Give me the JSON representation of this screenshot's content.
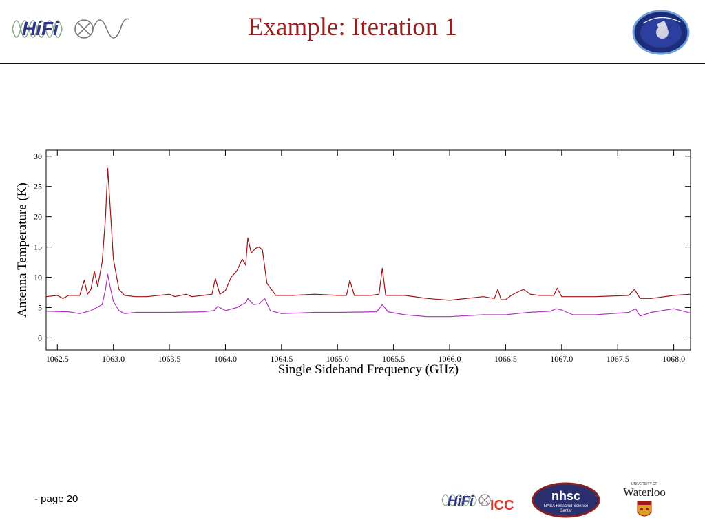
{
  "slide": {
    "title": "Example: Iteration 1",
    "page_label": "- page 20",
    "logos": {
      "top_left": "HiFi",
      "top_right_icon": "herschel-mission-icon",
      "bottom_hifi": "HiFi",
      "bottom_icc": "ICC",
      "nhsc": "nhsc",
      "nhsc_sub1": "NASA Herschel Science",
      "nhsc_sub2": "Center",
      "waterloo_small": "UNIVERSITY OF",
      "waterloo": "Waterloo"
    }
  },
  "colors": {
    "title": "#9b1f1f",
    "series_upper": "#a01010",
    "series_lower": "#b030c0"
  },
  "chart_data": {
    "type": "line",
    "xlabel": "Single Sideband Frequency (GHz)",
    "ylabel": "Antenna Temperature (K)",
    "xlim": [
      1062.4,
      1068.15
    ],
    "ylim": [
      -2,
      31
    ],
    "xticks": [
      1062.5,
      1063.0,
      1063.5,
      1064.0,
      1064.5,
      1065.0,
      1065.5,
      1066.0,
      1066.5,
      1067.0,
      1067.5,
      1068.0
    ],
    "xtick_labels": [
      "1062.5",
      "1063.0",
      "1063.5",
      "1064.0",
      "1064.5",
      "1065.0",
      "1065.5",
      "1066.0",
      "1066.5",
      "1067.0",
      "1067.5",
      "1068.0"
    ],
    "yticks": [
      0,
      5,
      10,
      15,
      20,
      25,
      30
    ],
    "ytick_labels": [
      "0",
      "5",
      "10",
      "15",
      "20",
      "25",
      "30"
    ],
    "grid": false,
    "legend": "none",
    "series": [
      {
        "x": [
          1062.4,
          1062.5,
          1062.55,
          1062.6,
          1062.7,
          1062.74,
          1062.77,
          1062.8,
          1062.83,
          1062.86,
          1062.9,
          1062.93,
          1062.95,
          1062.97,
          1063.0,
          1063.05,
          1063.1,
          1063.2,
          1063.3,
          1063.5,
          1063.55,
          1063.65,
          1063.7,
          1063.8,
          1063.88,
          1063.91,
          1063.95,
          1064.0,
          1064.05,
          1064.1,
          1064.15,
          1064.18,
          1064.2,
          1064.23,
          1064.27,
          1064.3,
          1064.33,
          1064.37,
          1064.45,
          1064.6,
          1064.8,
          1065.0,
          1065.08,
          1065.11,
          1065.15,
          1065.3,
          1065.37,
          1065.4,
          1065.43,
          1065.6,
          1065.8,
          1066.0,
          1066.3,
          1066.4,
          1066.43,
          1066.46,
          1066.5,
          1066.55,
          1066.6,
          1066.66,
          1066.72,
          1066.8,
          1066.93,
          1066.96,
          1067.0,
          1067.3,
          1067.6,
          1067.65,
          1067.7,
          1067.8,
          1068.0,
          1068.15
        ],
        "values": [
          6.8,
          7.0,
          6.5,
          7.0,
          7.0,
          9.5,
          7.2,
          8.0,
          11.0,
          8.5,
          12.5,
          20.0,
          28.0,
          22.0,
          13.0,
          8.0,
          7.0,
          6.8,
          6.8,
          7.2,
          6.8,
          7.2,
          6.8,
          7.0,
          7.2,
          9.8,
          7.2,
          7.8,
          10.0,
          11.0,
          13.0,
          12.0,
          16.5,
          14.0,
          14.8,
          15.0,
          14.5,
          9.0,
          7.0,
          7.0,
          7.2,
          7.0,
          7.0,
          9.5,
          7.0,
          7.0,
          7.2,
          11.5,
          7.0,
          7.0,
          6.5,
          6.2,
          6.8,
          6.5,
          8.0,
          6.3,
          6.3,
          7.0,
          7.5,
          8.0,
          7.2,
          7.0,
          7.0,
          8.2,
          6.8,
          6.8,
          7.0,
          8.0,
          6.5,
          6.5,
          7.0,
          7.2
        ]
      },
      {
        "x": [
          1062.4,
          1062.6,
          1062.7,
          1062.8,
          1062.85,
          1062.9,
          1062.93,
          1062.95,
          1062.97,
          1063.0,
          1063.05,
          1063.1,
          1063.2,
          1063.5,
          1063.8,
          1063.9,
          1063.93,
          1064.0,
          1064.1,
          1064.18,
          1064.2,
          1064.25,
          1064.3,
          1064.35,
          1064.4,
          1064.5,
          1064.8,
          1065.0,
          1065.35,
          1065.4,
          1065.45,
          1065.6,
          1065.8,
          1066.0,
          1066.3,
          1066.5,
          1066.7,
          1066.9,
          1066.95,
          1067.0,
          1067.1,
          1067.3,
          1067.6,
          1067.66,
          1067.7,
          1067.8,
          1068.0,
          1068.15
        ],
        "values": [
          4.4,
          4.3,
          4.0,
          4.5,
          5.0,
          5.5,
          8.0,
          10.5,
          8.5,
          6.0,
          4.5,
          4.0,
          4.2,
          4.2,
          4.3,
          4.5,
          5.2,
          4.5,
          5.0,
          5.8,
          6.5,
          5.5,
          5.6,
          6.5,
          4.5,
          4.0,
          4.2,
          4.2,
          4.3,
          5.5,
          4.3,
          3.8,
          3.5,
          3.5,
          3.8,
          3.8,
          4.2,
          4.4,
          4.8,
          4.6,
          3.8,
          3.8,
          4.2,
          4.8,
          3.6,
          4.2,
          4.8,
          4.1
        ]
      }
    ]
  }
}
